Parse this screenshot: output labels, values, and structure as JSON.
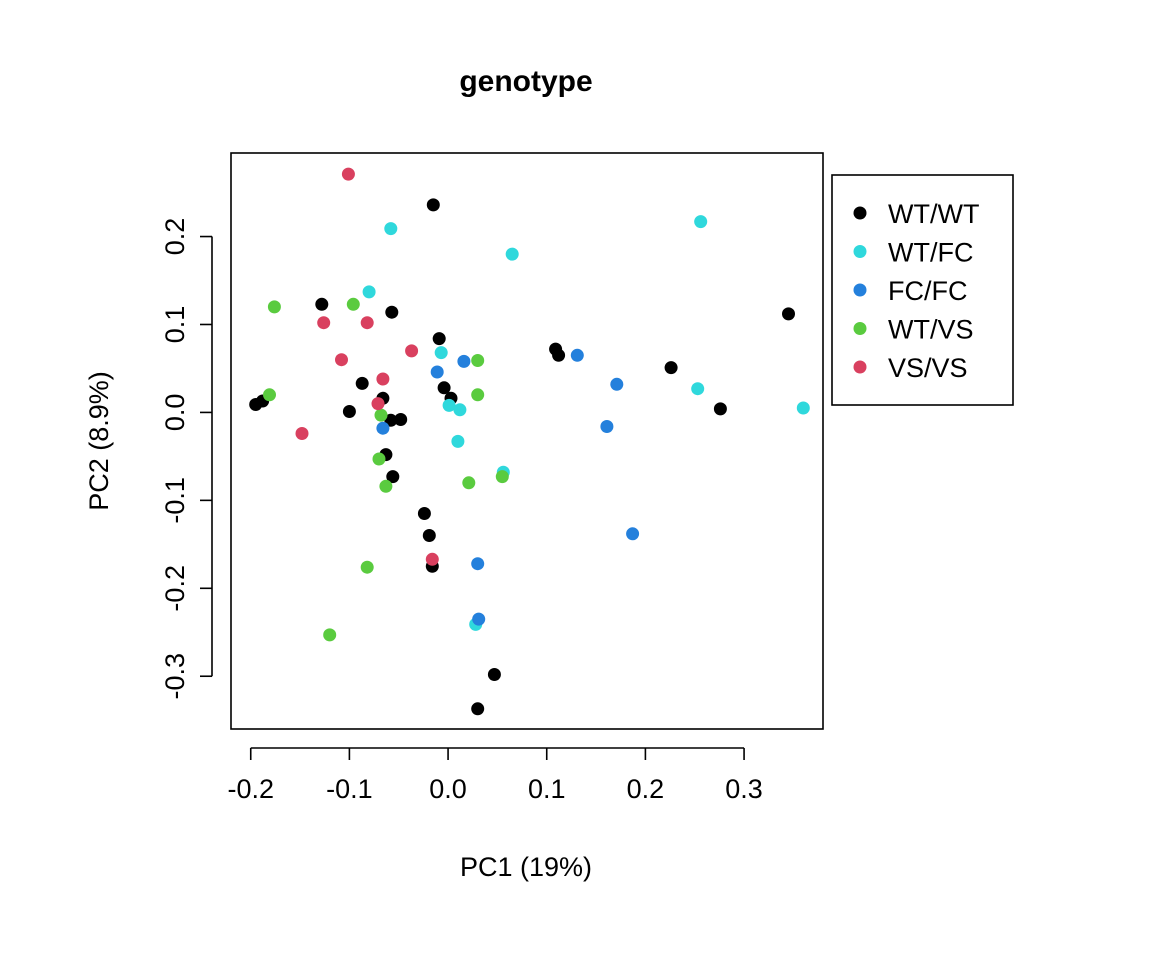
{
  "chart_data": {
    "type": "scatter",
    "title": "genotype",
    "xlabel": "PC1 (19%)",
    "ylabel": "PC2 (8.9%)",
    "xlim": [
      -0.22,
      0.38
    ],
    "ylim": [
      -0.36,
      0.295
    ],
    "xticks": [
      -0.2,
      -0.1,
      0.0,
      0.1,
      0.2,
      0.3
    ],
    "xtick_labels": [
      "-0.2",
      "-0.1",
      "0.0",
      "0.1",
      "0.2",
      "0.3"
    ],
    "yticks": [
      -0.3,
      -0.2,
      -0.1,
      0.0,
      0.1,
      0.2
    ],
    "ytick_labels": [
      "-0.3",
      "-0.2",
      "-0.1",
      "0.0",
      "0.1",
      "0.2"
    ],
    "grid": false,
    "legend_position": "right",
    "series": [
      {
        "name": "WT/WT",
        "color": "#000000",
        "points": [
          [
            -0.195,
            0.009
          ],
          [
            -0.188,
            0.013
          ],
          [
            -0.128,
            0.123
          ],
          [
            -0.1,
            0.001
          ],
          [
            -0.087,
            0.033
          ],
          [
            -0.066,
            0.016
          ],
          [
            -0.063,
            -0.048
          ],
          [
            -0.058,
            -0.009
          ],
          [
            -0.057,
            0.114
          ],
          [
            -0.056,
            -0.073
          ],
          [
            -0.048,
            -0.008
          ],
          [
            -0.024,
            -0.115
          ],
          [
            -0.019,
            -0.14
          ],
          [
            -0.016,
            -0.175
          ],
          [
            -0.015,
            0.236
          ],
          [
            -0.009,
            0.084
          ],
          [
            -0.004,
            0.028
          ],
          [
            0.003,
            0.016
          ],
          [
            0.03,
            -0.337
          ],
          [
            0.047,
            -0.298
          ],
          [
            0.109,
            0.072
          ],
          [
            0.112,
            0.065
          ],
          [
            0.226,
            0.051
          ],
          [
            0.276,
            0.004
          ],
          [
            0.345,
            0.112
          ]
        ]
      },
      {
        "name": "WT/FC",
        "color": "#2fd8dc",
        "points": [
          [
            -0.08,
            0.137
          ],
          [
            -0.058,
            0.209
          ],
          [
            -0.007,
            0.068
          ],
          [
            0.001,
            0.008
          ],
          [
            0.01,
            -0.033
          ],
          [
            0.012,
            0.003
          ],
          [
            0.028,
            -0.241
          ],
          [
            0.056,
            -0.068
          ],
          [
            0.065,
            0.18
          ],
          [
            0.253,
            0.027
          ],
          [
            0.256,
            0.217
          ],
          [
            0.36,
            0.005
          ]
        ]
      },
      {
        "name": "FC/FC",
        "color": "#2480dc",
        "points": [
          [
            -0.066,
            -0.018
          ],
          [
            -0.011,
            0.046
          ],
          [
            0.016,
            0.058
          ],
          [
            0.03,
            -0.172
          ],
          [
            0.031,
            -0.235
          ],
          [
            0.131,
            0.065
          ],
          [
            0.171,
            0.032
          ],
          [
            0.161,
            -0.016
          ],
          [
            0.187,
            -0.138
          ]
        ]
      },
      {
        "name": "WT/VS",
        "color": "#5acb3f",
        "points": [
          [
            -0.181,
            0.02
          ],
          [
            -0.176,
            0.12
          ],
          [
            -0.12,
            -0.253
          ],
          [
            -0.096,
            0.123
          ],
          [
            -0.082,
            -0.176
          ],
          [
            -0.07,
            -0.053
          ],
          [
            -0.068,
            -0.003
          ],
          [
            -0.063,
            -0.084
          ],
          [
            0.021,
            -0.08
          ],
          [
            0.03,
            0.059
          ],
          [
            0.03,
            0.02
          ],
          [
            0.055,
            -0.073
          ]
        ]
      },
      {
        "name": "VS/VS",
        "color": "#d9405f",
        "points": [
          [
            -0.148,
            -0.024
          ],
          [
            -0.126,
            0.102
          ],
          [
            -0.108,
            0.06
          ],
          [
            -0.101,
            0.271
          ],
          [
            -0.082,
            0.102
          ],
          [
            -0.071,
            0.01
          ],
          [
            -0.066,
            0.038
          ],
          [
            -0.037,
            0.07
          ],
          [
            -0.016,
            -0.167
          ]
        ]
      }
    ]
  }
}
